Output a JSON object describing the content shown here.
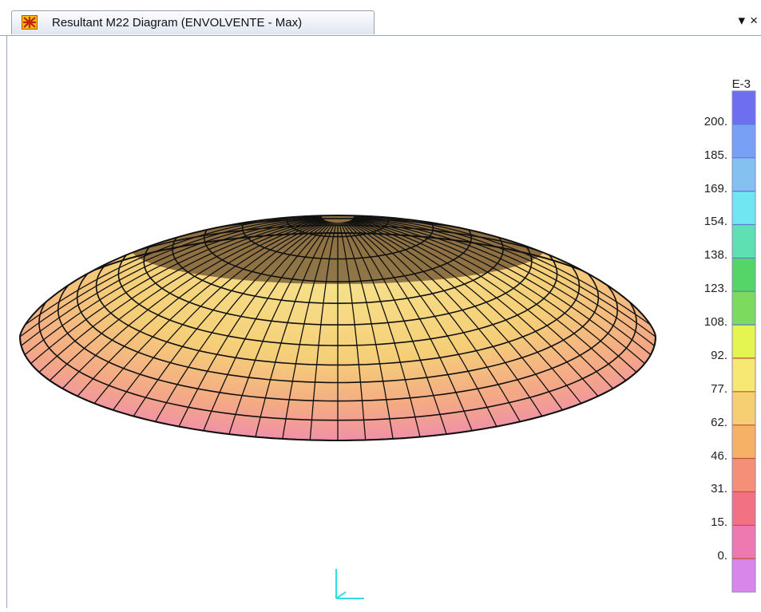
{
  "window": {
    "tab_title": "Resultant M22 Diagram   (ENVOLVENTE - Max)",
    "app_icon": "model-icon",
    "dropdown_glyph": "▾",
    "close_glyph": "×"
  },
  "legend": {
    "exponent": "E-3",
    "tick_labels": [
      "200.",
      "185.",
      "169.",
      "154.",
      "138.",
      "123.",
      "108.",
      "92.",
      "77.",
      "62.",
      "46.",
      "31.",
      "15.",
      "0."
    ],
    "colors": [
      "#6e6ef0",
      "#78a0f4",
      "#84c0f0",
      "#6fe6f2",
      "#5fe0b2",
      "#55d468",
      "#7cdb5e",
      "#e4f450",
      "#f6e872",
      "#f7cf73",
      "#f6b166",
      "#f58f78",
      "#f27284",
      "#ee79b0",
      "#d986ea"
    ]
  },
  "diagram": {
    "axis_icon": "xyz-axes-icon"
  }
}
